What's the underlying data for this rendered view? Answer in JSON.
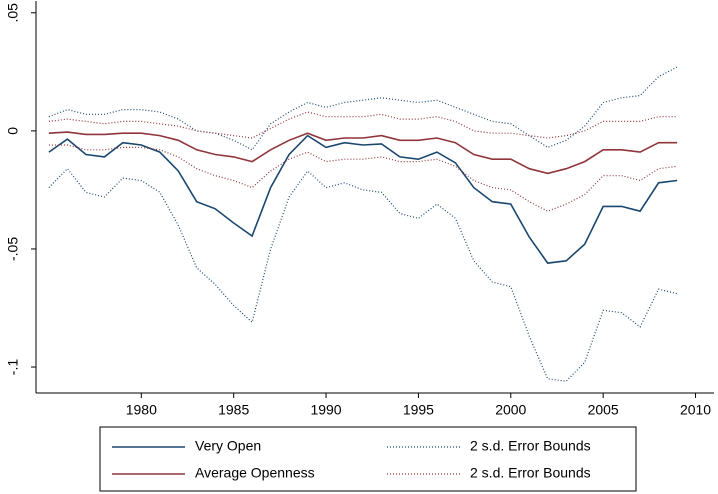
{
  "chart_data": {
    "type": "line",
    "x": [
      1975,
      1976,
      1977,
      1978,
      1979,
      1980,
      1981,
      1982,
      1983,
      1984,
      1985,
      1986,
      1987,
      1988,
      1989,
      1990,
      1991,
      1992,
      1993,
      1994,
      1995,
      1996,
      1997,
      1998,
      1999,
      2000,
      2001,
      2002,
      2003,
      2004,
      2005,
      2006,
      2007,
      2008,
      2009
    ],
    "xlim": [
      1974.3,
      2011
    ],
    "xticks": [
      1980,
      1985,
      1990,
      1995,
      2000,
      2005,
      2010
    ],
    "ylim": [
      -0.111,
      0.055
    ],
    "yticks": [
      {
        "value": 0.05,
        "label": ".05"
      },
      0,
      {
        "value": -0.05,
        "label": "-.05"
      },
      {
        "value": -0.1,
        "label": "-.1"
      }
    ],
    "series": [
      {
        "name": "Very Open",
        "color": "#1a476f",
        "style": "solid",
        "values": [
          -0.009,
          -0.0035,
          -0.01,
          -0.011,
          -0.005,
          -0.006,
          -0.009,
          -0.017,
          -0.03,
          -0.033,
          -0.039,
          -0.0445,
          -0.024,
          -0.01,
          -0.002,
          -0.007,
          -0.005,
          -0.006,
          -0.0055,
          -0.011,
          -0.012,
          -0.009,
          -0.0135,
          -0.024,
          -0.03,
          -0.031,
          -0.045,
          -0.056,
          -0.055,
          -0.048,
          -0.032,
          -0.032,
          -0.034,
          -0.022,
          -0.021
        ]
      },
      {
        "name": "Average Openness",
        "color": "#90353b",
        "style": "solid",
        "values": [
          -0.001,
          -0.0005,
          -0.0015,
          -0.0015,
          -0.001,
          -0.001,
          -0.002,
          -0.004,
          -0.008,
          -0.01,
          -0.011,
          -0.013,
          -0.008,
          -0.004,
          -0.001,
          -0.004,
          -0.003,
          -0.003,
          -0.002,
          -0.004,
          -0.004,
          -0.003,
          -0.005,
          -0.01,
          -0.012,
          -0.012,
          -0.016,
          -0.018,
          -0.016,
          -0.013,
          -0.008,
          -0.008,
          -0.009,
          -0.005,
          -0.005
        ]
      },
      {
        "name": "2 s.d. Error Bounds",
        "color": "#1a476f",
        "style": "dotted",
        "values": [
          0.006,
          0.009,
          0.007,
          0.007,
          0.009,
          0.009,
          0.008,
          0.005,
          0.0,
          -0.001,
          -0.004,
          -0.008,
          0.003,
          0.008,
          0.012,
          0.01,
          0.012,
          0.013,
          0.014,
          0.013,
          0.012,
          0.013,
          0.01,
          0.007,
          0.004,
          0.003,
          -0.002,
          -0.007,
          -0.004,
          0.002,
          0.012,
          0.014,
          0.015,
          0.023,
          0.027
        ],
        "lower": [
          -0.024,
          -0.016,
          -0.026,
          -0.028,
          -0.02,
          -0.021,
          -0.026,
          -0.04,
          -0.058,
          -0.065,
          -0.074,
          -0.081,
          -0.05,
          -0.028,
          -0.017,
          -0.024,
          -0.022,
          -0.025,
          -0.026,
          -0.035,
          -0.037,
          -0.031,
          -0.037,
          -0.055,
          -0.064,
          -0.066,
          -0.087,
          -0.105,
          -0.106,
          -0.098,
          -0.076,
          -0.077,
          -0.083,
          -0.067,
          -0.069
        ]
      },
      {
        "name": "2 s.d. Error Bounds",
        "color": "#90353b",
        "style": "dotted",
        "values": [
          0.004,
          0.005,
          0.004,
          0.003,
          0.004,
          0.004,
          0.003,
          0.002,
          0.0,
          -0.001,
          -0.002,
          -0.003,
          0.001,
          0.005,
          0.008,
          0.006,
          0.006,
          0.006,
          0.007,
          0.005,
          0.005,
          0.006,
          0.004,
          0.0,
          -0.001,
          -0.001,
          -0.002,
          -0.003,
          -0.002,
          0.0,
          0.004,
          0.004,
          0.004,
          0.006,
          0.006
        ],
        "lower": [
          -0.006,
          -0.006,
          -0.008,
          -0.008,
          -0.007,
          -0.007,
          -0.008,
          -0.011,
          -0.016,
          -0.019,
          -0.021,
          -0.024,
          -0.017,
          -0.012,
          -0.009,
          -0.013,
          -0.012,
          -0.012,
          -0.011,
          -0.013,
          -0.013,
          -0.012,
          -0.015,
          -0.021,
          -0.024,
          -0.025,
          -0.03,
          -0.034,
          -0.031,
          -0.027,
          -0.019,
          -0.019,
          -0.021,
          -0.016,
          -0.015
        ]
      }
    ]
  }
}
